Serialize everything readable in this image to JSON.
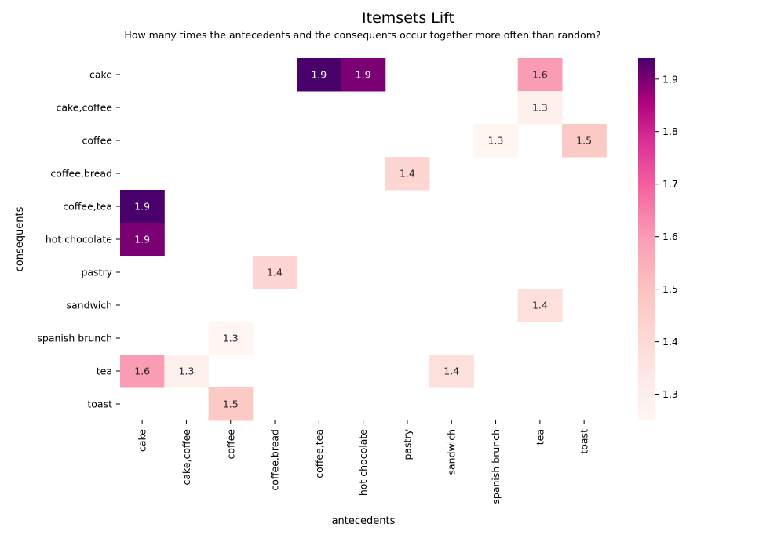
{
  "chart_data": {
    "type": "heatmap",
    "title": "Itemsets Lift",
    "subtitle": "How many times the antecedents and the consequents occur together more often than random?",
    "xlabel": "antecedents",
    "ylabel": "consequents",
    "x_categories": [
      "cake",
      "cake,coffee",
      "coffee",
      "coffee,bread",
      "coffee,tea",
      "hot chocolate",
      "pastry",
      "sandwich",
      "spanish brunch",
      "tea",
      "toast"
    ],
    "y_categories": [
      "cake",
      "cake,coffee",
      "coffee",
      "coffee,bread",
      "coffee,tea",
      "hot chocolate",
      "pastry",
      "sandwich",
      "spanish brunch",
      "tea",
      "toast"
    ],
    "cells": [
      {
        "row": "cake",
        "col": "coffee,tea",
        "value": 1.94,
        "label": "1.9"
      },
      {
        "row": "cake",
        "col": "hot chocolate",
        "value": 1.9,
        "label": "1.9"
      },
      {
        "row": "cake",
        "col": "tea",
        "value": 1.6,
        "label": "1.6"
      },
      {
        "row": "cake,coffee",
        "col": "tea",
        "value": 1.29,
        "label": "1.3"
      },
      {
        "row": "coffee",
        "col": "spanish brunch",
        "value": 1.26,
        "label": "1.3"
      },
      {
        "row": "coffee",
        "col": "toast",
        "value": 1.47,
        "label": "1.5"
      },
      {
        "row": "coffee,bread",
        "col": "pastry",
        "value": 1.42,
        "label": "1.4"
      },
      {
        "row": "coffee,tea",
        "col": "cake",
        "value": 1.94,
        "label": "1.9"
      },
      {
        "row": "hot chocolate",
        "col": "cake",
        "value": 1.9,
        "label": "1.9"
      },
      {
        "row": "pastry",
        "col": "coffee,bread",
        "value": 1.42,
        "label": "1.4"
      },
      {
        "row": "sandwich",
        "col": "tea",
        "value": 1.38,
        "label": "1.4"
      },
      {
        "row": "spanish brunch",
        "col": "coffee",
        "value": 1.26,
        "label": "1.3"
      },
      {
        "row": "tea",
        "col": "cake",
        "value": 1.6,
        "label": "1.6"
      },
      {
        "row": "tea",
        "col": "cake,coffee",
        "value": 1.29,
        "label": "1.3"
      },
      {
        "row": "tea",
        "col": "sandwich",
        "value": 1.38,
        "label": "1.4"
      },
      {
        "row": "toast",
        "col": "coffee",
        "value": 1.47,
        "label": "1.5"
      }
    ],
    "colorscale": "RdPu",
    "vmin": 1.25,
    "vmax": 1.94,
    "colorbar_ticks": [
      1.3,
      1.4,
      1.5,
      1.6,
      1.7,
      1.8,
      1.9
    ],
    "grid": false,
    "colorbar_position": "right"
  }
}
